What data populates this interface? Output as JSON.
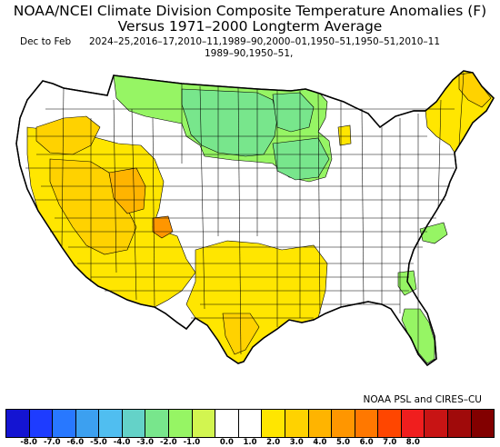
{
  "title_line1": "NOAA/NCEI Climate Division Composite Temperature Anomalies (F)",
  "title_line2": "Versus 1971–2000 Longterm Average",
  "period_label": "Dec to Feb",
  "years_line1": "2024–25,2016–17,2010–11,1989–90,2000–01,1950–51,1950–51,2010–11",
  "years_line2": "1989–90,1950–51,",
  "credit": "NOAA PSL and CIRES–CU",
  "legend": {
    "colors": [
      "#1414d2",
      "#1e3cff",
      "#2878ff",
      "#3ca0f0",
      "#50bef0",
      "#64d2c8",
      "#78e68c",
      "#96f564",
      "#d2f550",
      "#ffffff",
      "#ffffff",
      "#ffe600",
      "#ffd200",
      "#ffb400",
      "#ff9600",
      "#ff7800",
      "#ff4600",
      "#f01e1e",
      "#c81414",
      "#a00a0a",
      "#820000"
    ],
    "ticks": [
      "-8.0",
      "-7.0",
      "-6.0",
      "-5.0",
      "-4.0",
      "-3.0",
      "-2.0",
      "-1.0",
      "0.0",
      "1.0",
      "2.0",
      "3.0",
      "4.0",
      "5.0",
      "6.0",
      "7.0",
      "8.0"
    ]
  },
  "map": {
    "colors": {
      "land": "#ffffff",
      "cool_light": "#96f564",
      "cool_mid": "#78e68c",
      "cool_lime": "#d2f550",
      "warm_light": "#ffe600",
      "warm_mid": "#ffd200",
      "warm_orange": "#ffb400",
      "warm_hot": "#ff9600",
      "border": "#000000"
    }
  }
}
